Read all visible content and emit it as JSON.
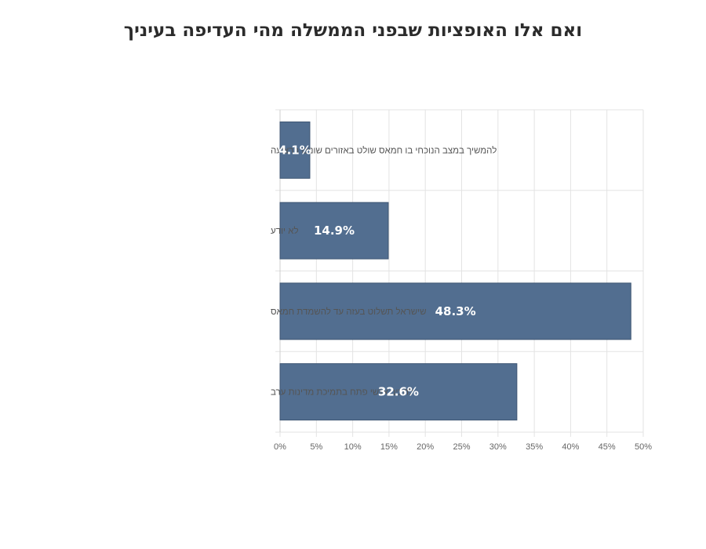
{
  "chart_data": {
    "type": "bar",
    "orientation": "horizontal",
    "title": "ואם אלו האופציות שבפני הממשלה מהי העדיפה בעיניך",
    "categories": [
      "להמשיך במצב הנוכחי בו חמאס שולט באזורים שונים ברצועה",
      "לא יודע",
      "שישראל תשלוט בעזה עד להשמדת חמאס",
      "להציב אנשי פתח בתמיכת מדינות ערב"
    ],
    "values": [
      4.1,
      14.9,
      48.3,
      32.6
    ],
    "data_labels": [
      "4.1%",
      "14.9%",
      "48.3%",
      "32.6%"
    ],
    "xlim": [
      0,
      50
    ],
    "x_ticks": [
      0,
      5,
      10,
      15,
      20,
      25,
      30,
      35,
      40,
      45,
      50
    ],
    "x_tick_labels": [
      "0%",
      "5%",
      "10%",
      "15%",
      "20%",
      "25%",
      "30%",
      "35%",
      "40%",
      "45%",
      "50%"
    ],
    "grid": true,
    "legend": "none",
    "bar_color": "#526e90"
  }
}
